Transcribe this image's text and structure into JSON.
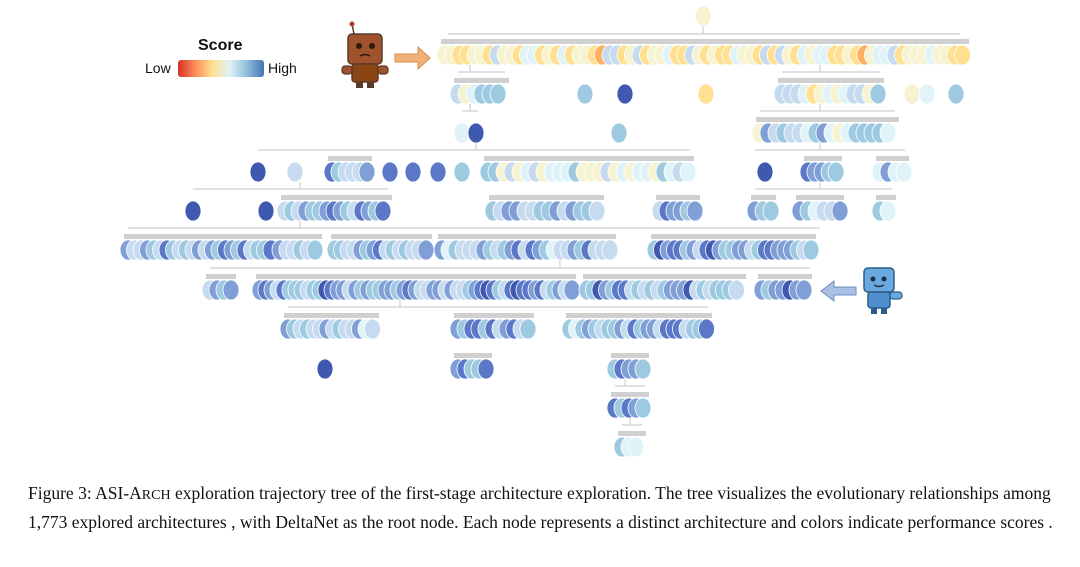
{
  "legend": {
    "title": "Score",
    "low_label": "Low",
    "high_label": "High",
    "colors": [
      "#d73027",
      "#fc8d59",
      "#fee090",
      "#e0f3f8",
      "#91bfdb",
      "#4575b4"
    ]
  },
  "agent_icon_top": "robot-brown-icon",
  "agent_icon_bottom": "robot-blue-icon",
  "arrow_color": "#f0b27a",
  "arrow_bottom_color": "#8faadc",
  "caption": {
    "figure_label": "Figure 3:",
    "name_prefix": "ASI-A",
    "name_smallcaps": "rch",
    "text": "exploration trajectory tree of the first-stage architecture exploration. The tree visualizes the evolutionary relationships among 1,773 explored architectures , with DeltaNet as the root node. Each node represents a distinct architecture and colors indicate performance scores ."
  }
}
